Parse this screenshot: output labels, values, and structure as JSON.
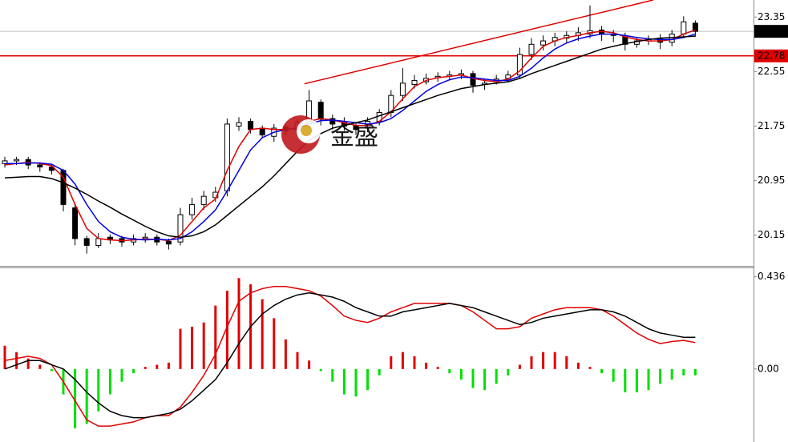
{
  "chart_data": [
    {
      "type": "candlestick",
      "watermark": "金盛",
      "ylim": [
        19.7,
        23.6
      ],
      "yticks": [
        20.15,
        20.95,
        21.75,
        22.55,
        23.35
      ],
      "open": [
        21.2,
        21.24,
        21.26,
        21.18,
        21.15,
        21.1,
        20.55,
        20.1,
        20.0,
        20.12,
        20.1,
        20.05,
        20.1,
        20.12,
        20.06,
        20.05,
        20.45,
        20.6,
        20.7,
        20.8,
        21.75,
        21.82,
        21.72,
        21.6,
        21.74,
        21.7,
        21.78,
        22.1,
        21.86,
        21.8,
        21.76,
        21.72,
        21.82,
        21.95,
        22.2,
        22.36,
        22.4,
        22.46,
        22.48,
        22.5,
        22.52,
        22.36,
        22.4,
        22.45,
        22.5,
        22.8,
        22.94,
        23.0,
        23.04,
        23.08,
        23.1,
        23.16,
        23.1,
        23.06,
        22.95,
        23.0,
        23.04,
        22.98,
        23.1,
        23.26
      ],
      "high": [
        21.3,
        21.3,
        21.3,
        21.22,
        21.18,
        21.12,
        20.62,
        20.14,
        20.18,
        20.16,
        20.14,
        20.16,
        20.18,
        20.16,
        20.1,
        20.55,
        20.7,
        20.8,
        20.86,
        21.86,
        21.88,
        21.86,
        21.76,
        21.78,
        21.78,
        21.86,
        22.28,
        22.14,
        21.92,
        21.88,
        21.8,
        21.88,
        22.0,
        22.28,
        22.6,
        22.5,
        22.52,
        22.54,
        22.56,
        22.58,
        22.56,
        22.44,
        22.5,
        22.56,
        22.9,
        23.04,
        23.08,
        23.12,
        23.14,
        23.2,
        23.52,
        23.22,
        23.16,
        23.12,
        23.06,
        23.08,
        23.1,
        23.16,
        23.36,
        23.3
      ],
      "low": [
        21.14,
        21.18,
        21.12,
        21.08,
        21.04,
        20.5,
        20.0,
        19.88,
        19.96,
        20.02,
        19.98,
        20.0,
        20.04,
        20.0,
        19.94,
        20.0,
        20.38,
        20.52,
        20.64,
        20.72,
        21.68,
        21.64,
        21.58,
        21.52,
        21.62,
        21.6,
        21.72,
        21.76,
        21.7,
        21.68,
        21.62,
        21.66,
        21.76,
        21.88,
        22.12,
        22.3,
        22.36,
        22.4,
        22.42,
        22.44,
        22.24,
        22.28,
        22.36,
        22.4,
        22.44,
        22.72,
        22.86,
        22.92,
        22.98,
        23.0,
        23.04,
        23.0,
        22.98,
        22.86,
        22.9,
        22.94,
        22.88,
        22.92,
        23.04,
        23.06
      ],
      "close": [
        21.24,
        21.26,
        21.18,
        21.15,
        21.1,
        20.6,
        20.1,
        20.0,
        20.1,
        20.08,
        20.05,
        20.1,
        20.12,
        20.05,
        20.02,
        20.45,
        20.6,
        20.72,
        20.78,
        21.78,
        21.8,
        21.7,
        21.62,
        21.72,
        21.68,
        21.8,
        22.12,
        21.85,
        21.78,
        21.75,
        21.7,
        21.82,
        21.95,
        22.2,
        22.38,
        22.42,
        22.45,
        22.48,
        22.5,
        22.52,
        22.35,
        22.38,
        22.44,
        22.5,
        22.8,
        22.95,
        23.0,
        23.05,
        23.08,
        23.12,
        23.15,
        23.1,
        23.08,
        22.95,
        23.0,
        23.02,
        22.98,
        23.1,
        23.28,
        23.14
      ],
      "series": [
        {
          "color": "#e00000",
          "values": [
            21.18,
            21.2,
            21.22,
            21.2,
            21.17,
            21.0,
            20.6,
            20.25,
            20.1,
            20.08,
            20.07,
            20.08,
            20.09,
            20.09,
            20.07,
            20.15,
            20.35,
            20.55,
            20.68,
            21.1,
            21.45,
            21.7,
            21.72,
            21.7,
            21.7,
            21.72,
            21.82,
            21.86,
            21.84,
            21.8,
            21.76,
            21.76,
            21.82,
            21.96,
            22.15,
            22.33,
            22.42,
            22.46,
            22.48,
            22.5,
            22.45,
            22.42,
            22.4,
            22.44,
            22.56,
            22.75,
            22.92,
            23.0,
            23.05,
            23.08,
            23.12,
            23.14,
            23.12,
            23.06,
            23.02,
            23.0,
            23.0,
            23.02,
            23.1,
            23.16
          ]
        },
        {
          "color": "#0000e0",
          "values": [
            21.2,
            21.2,
            21.21,
            21.21,
            21.19,
            21.1,
            20.9,
            20.6,
            20.35,
            20.2,
            20.12,
            20.09,
            20.08,
            20.09,
            20.08,
            20.1,
            20.2,
            20.35,
            20.52,
            20.8,
            21.1,
            21.4,
            21.58,
            21.66,
            21.7,
            21.72,
            21.78,
            21.83,
            21.84,
            21.82,
            21.8,
            21.78,
            21.8,
            21.86,
            21.98,
            22.12,
            22.26,
            22.36,
            22.43,
            22.47,
            22.46,
            22.44,
            22.42,
            22.42,
            22.48,
            22.6,
            22.75,
            22.88,
            22.97,
            23.03,
            23.07,
            23.1,
            23.1,
            23.08,
            23.05,
            23.03,
            23.02,
            23.02,
            23.05,
            23.1
          ]
        },
        {
          "color": "#000000",
          "values": [
            20.99,
            21.0,
            21.01,
            21.01,
            20.98,
            20.92,
            20.84,
            20.75,
            20.65,
            20.56,
            20.46,
            20.37,
            20.28,
            20.2,
            20.14,
            20.12,
            20.14,
            20.2,
            20.3,
            20.44,
            20.58,
            20.72,
            20.86,
            21.02,
            21.2,
            21.38,
            21.54,
            21.64,
            21.72,
            21.76,
            21.8,
            21.84,
            21.9,
            21.96,
            22.02,
            22.08,
            22.14,
            22.2,
            22.25,
            22.3,
            22.33,
            22.36,
            22.38,
            22.4,
            22.45,
            22.52,
            22.58,
            22.64,
            22.7,
            22.76,
            22.82,
            22.88,
            22.92,
            22.96,
            22.99,
            23.02,
            23.04,
            23.05,
            23.06,
            23.07
          ]
        }
      ],
      "trend_line": {
        "x": [
          25.6,
          55.4
        ],
        "y": [
          22.37,
          23.6
        ],
        "color": "#e00000"
      },
      "hline": {
        "value": 22.78,
        "color": "#e00000"
      },
      "last_price": {
        "value": 23.14,
        "color": "#000000"
      }
    },
    {
      "type": "macd",
      "ylim": [
        -0.345,
        0.48
      ],
      "yticks": [
        {
          "value": 0,
          "label": "0.00"
        },
        0.436
      ],
      "histogram": {
        "up_color": "#e00000",
        "down_color": "#00e000",
        "values": [
          0.11,
          0.08,
          0.05,
          0.02,
          -0.01,
          -0.12,
          -0.28,
          -0.26,
          -0.2,
          -0.12,
          -0.06,
          -0.02,
          0.01,
          0.02,
          0.03,
          0.19,
          0.2,
          0.22,
          0.3,
          0.37,
          0.43,
          0.4,
          0.33,
          0.24,
          0.14,
          0.08,
          0.04,
          -0.01,
          -0.06,
          -0.12,
          -0.13,
          -0.1,
          -0.03,
          0.06,
          0.08,
          0.06,
          0.03,
          0.01,
          -0.02,
          -0.05,
          -0.09,
          -0.1,
          -0.07,
          -0.03,
          0.02,
          0.06,
          0.08,
          0.08,
          0.06,
          0.03,
          0.01,
          -0.02,
          -0.06,
          -0.11,
          -0.11,
          -0.1,
          -0.07,
          -0.05,
          -0.03,
          -0.03
        ]
      },
      "series": [
        {
          "color": "#e00000",
          "values": [
            0.04,
            0.05,
            0.06,
            0.05,
            0.02,
            -0.06,
            -0.15,
            -0.24,
            -0.27,
            -0.27,
            -0.26,
            -0.25,
            -0.23,
            -0.22,
            -0.22,
            -0.18,
            -0.11,
            -0.03,
            0.07,
            0.2,
            0.32,
            0.36,
            0.38,
            0.39,
            0.39,
            0.38,
            0.37,
            0.345,
            0.3,
            0.25,
            0.23,
            0.22,
            0.24,
            0.27,
            0.29,
            0.31,
            0.31,
            0.31,
            0.31,
            0.3,
            0.27,
            0.23,
            0.19,
            0.19,
            0.2,
            0.24,
            0.26,
            0.28,
            0.29,
            0.29,
            0.29,
            0.28,
            0.25,
            0.21,
            0.17,
            0.14,
            0.12,
            0.13,
            0.135,
            0.125
          ]
        },
        {
          "color": "#000000",
          "values": [
            0,
            0.02,
            0.04,
            0.04,
            0.02,
            0,
            -0.05,
            -0.11,
            -0.16,
            -0.2,
            -0.22,
            -0.23,
            -0.23,
            -0.22,
            -0.21,
            -0.19,
            -0.15,
            -0.1,
            -0.05,
            0.03,
            0.12,
            0.2,
            0.26,
            0.3,
            0.33,
            0.35,
            0.36,
            0.35,
            0.34,
            0.32,
            0.29,
            0.27,
            0.25,
            0.25,
            0.27,
            0.28,
            0.29,
            0.3,
            0.31,
            0.3,
            0.29,
            0.27,
            0.25,
            0.23,
            0.21,
            0.22,
            0.24,
            0.25,
            0.26,
            0.27,
            0.28,
            0.28,
            0.27,
            0.25,
            0.22,
            0.19,
            0.17,
            0.16,
            0.15,
            0.15
          ]
        }
      ]
    }
  ]
}
